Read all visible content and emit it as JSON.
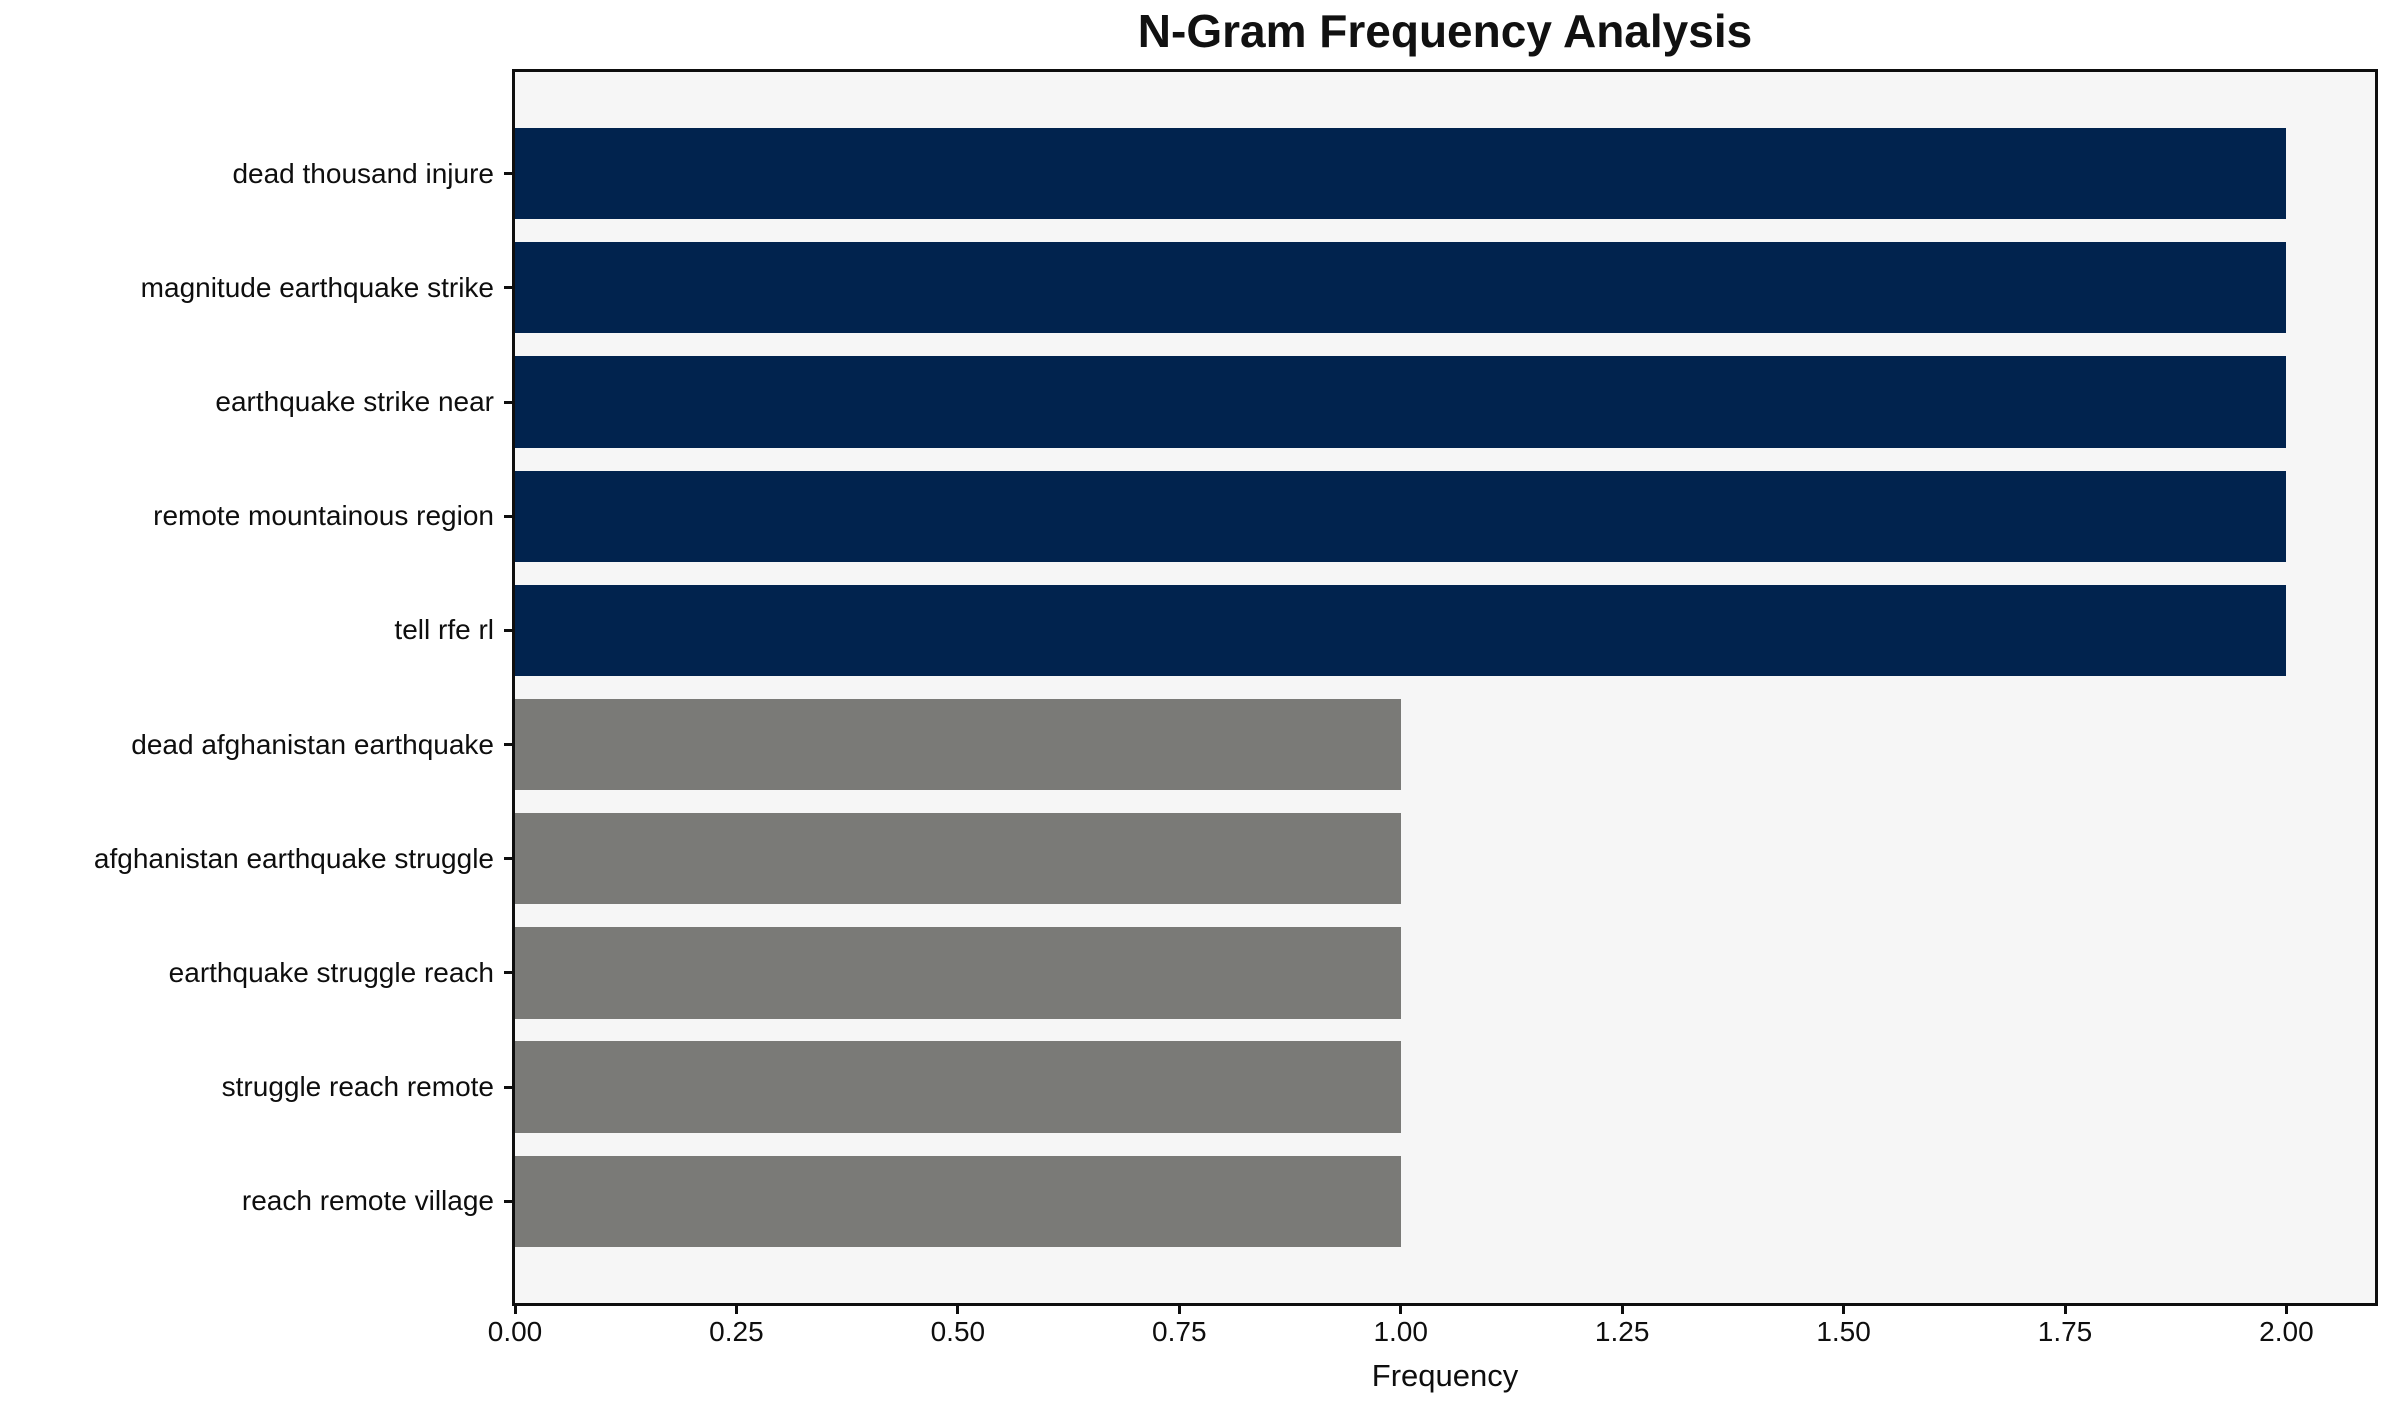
{
  "chart_data": {
    "type": "bar",
    "orientation": "horizontal",
    "title": "N-Gram Frequency Analysis",
    "xlabel": "Frequency",
    "ylabel": "",
    "categories": [
      "dead thousand injure",
      "magnitude earthquake strike",
      "earthquake strike near",
      "remote mountainous region",
      "tell rfe rl",
      "dead afghanistan earthquake",
      "afghanistan earthquake struggle",
      "earthquake struggle reach",
      "struggle reach remote",
      "reach remote village"
    ],
    "values": [
      2,
      2,
      2,
      2,
      2,
      1,
      1,
      1,
      1,
      1
    ],
    "bar_colors": [
      "#01234e",
      "#01234e",
      "#01234e",
      "#01234e",
      "#01234e",
      "#7a7a77",
      "#7a7a77",
      "#7a7a77",
      "#7a7a77",
      "#7a7a77"
    ],
    "xlim": [
      0,
      2.1
    ],
    "xticks": [
      0,
      0.25,
      0.5,
      0.75,
      1.0,
      1.25,
      1.5,
      1.75,
      2.0
    ],
    "xtick_labels": [
      "0.00",
      "0.25",
      "0.50",
      "0.75",
      "1.00",
      "1.25",
      "1.50",
      "1.75",
      "2.00"
    ],
    "grid": false,
    "legend_position": "none",
    "colors": {
      "high_frequency_bar": "#01234e",
      "low_frequency_bar": "#7a7a77",
      "plot_background": "#f6f6f6",
      "figure_background": "#ffffff",
      "spine": "#0e0e0e",
      "text": "#0e0e0e"
    }
  }
}
